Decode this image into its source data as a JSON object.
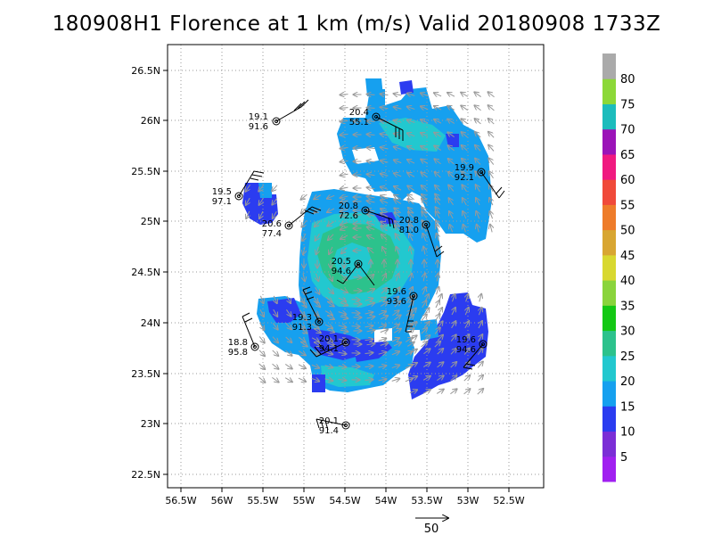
{
  "title": "180908H1 Florence at 1 km (m/s) Valid 20180908 1733Z",
  "axes": {
    "lon_ticks": [
      "56.5W",
      "56W",
      "55.5W",
      "55W",
      "54.5W",
      "54W",
      "53.5W",
      "53W",
      "52.5W"
    ],
    "lat_ticks": [
      "26.5N",
      "26N",
      "25.5N",
      "25N",
      "24.5N",
      "24N",
      "23.5N",
      "23N",
      "22.5N"
    ]
  },
  "colorbar": {
    "labels": [
      "5",
      "10",
      "15",
      "20",
      "25",
      "30",
      "35",
      "40",
      "45",
      "50",
      "55",
      "60",
      "65",
      "70",
      "75",
      "80"
    ],
    "colors": [
      "#a020f0",
      "#7b2ed6",
      "#2b3cf0",
      "#16a0ef",
      "#22c8cf",
      "#2cc28c",
      "#14c814",
      "#8ad43c",
      "#d8d830",
      "#d8a632",
      "#ee7c2a",
      "#f04a3a",
      "#f01a80",
      "#9b14b8",
      "#1cbcbc",
      "#8cd838",
      "#aaaaaa"
    ]
  },
  "stations": [
    {
      "top": "19.1",
      "bottom": "91.6"
    },
    {
      "top": "20.4",
      "bottom": "55.1"
    },
    {
      "top": "19.9",
      "bottom": "92.1"
    },
    {
      "top": "19.5",
      "bottom": "97.1"
    },
    {
      "top": "20.8",
      "bottom": "72.6"
    },
    {
      "top": "20.8",
      "bottom": "81.0"
    },
    {
      "top": "20.6",
      "bottom": "77.4"
    },
    {
      "top": "20.5",
      "bottom": "94.6"
    },
    {
      "top": "19.6",
      "bottom": "93.6"
    },
    {
      "top": "19.3",
      "bottom": "91.3"
    },
    {
      "top": "20.1",
      "bottom": "94.1"
    },
    {
      "top": "18.8",
      "bottom": "95.8"
    },
    {
      "top": "19.6",
      "bottom": "94.6"
    },
    {
      "top": "20.1",
      "bottom": "91.4"
    }
  ],
  "reference_vector": {
    "label": "50"
  }
}
